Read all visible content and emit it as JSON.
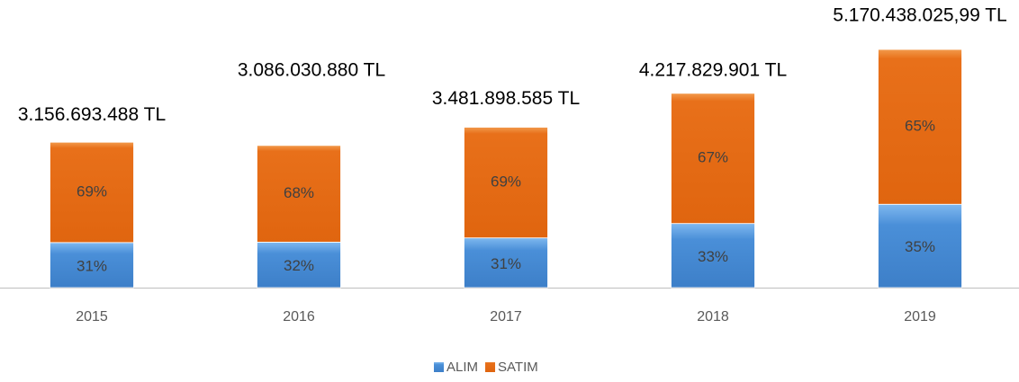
{
  "chart_data": {
    "type": "stacked_bar",
    "categories": [
      "2015",
      "2016",
      "2017",
      "2018",
      "2019"
    ],
    "series": [
      {
        "name": "ALIM",
        "color": "#4a8fd8",
        "values": [
          31,
          32,
          31,
          33,
          35
        ],
        "value_labels": [
          "31%",
          "32%",
          "31%",
          "33%",
          "35%"
        ]
      },
      {
        "name": "SATIM",
        "color": "#e8701a",
        "values": [
          69,
          68,
          69,
          67,
          65
        ],
        "value_labels": [
          "69%",
          "68%",
          "69%",
          "67%",
          "65%"
        ]
      }
    ],
    "totals": {
      "values": [
        3156693488,
        3086030880,
        3481898585,
        4217829901,
        5170438025.99
      ],
      "value_labels": [
        "3.156.693.488 TL",
        "3.086.030.880 TL",
        "3.481.898.585 TL",
        "4.217.829.901 TL",
        "5.170.438.025,99 TL"
      ]
    }
  }
}
